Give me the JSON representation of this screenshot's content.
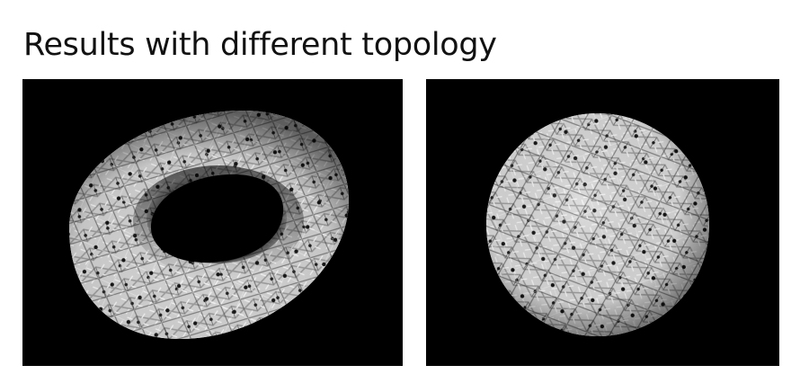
{
  "slide": {
    "title": "Results with different topology"
  },
  "panels": [
    {
      "shape": "torus",
      "background": "#000000",
      "surface_color": "#d9d9d9",
      "pattern_color": "#2a2a2a"
    },
    {
      "shape": "sphere",
      "background": "#000000",
      "surface_color": "#e0e0e0",
      "pattern_color": "#2a2a2a"
    }
  ]
}
